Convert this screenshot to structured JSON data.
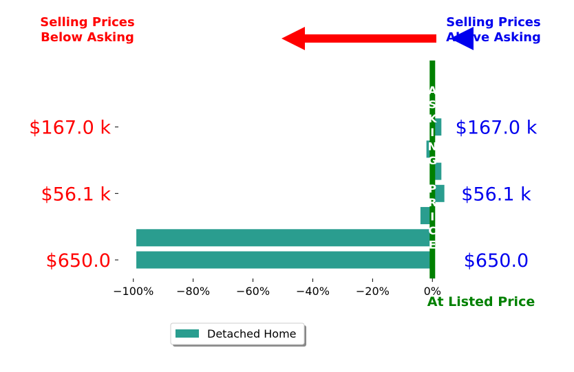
{
  "chart_data": {
    "type": "bar",
    "orientation": "horizontal",
    "series": [
      {
        "name": "Detached Home",
        "color": "#2a9d8f",
        "values": [
          -99,
          -99,
          -4,
          4,
          3,
          -2,
          3
        ]
      }
    ],
    "xlim": [
      -105,
      5
    ],
    "xticks": [
      {
        "value": -100,
        "label": "−100%"
      },
      {
        "value": -80,
        "label": "−80%"
      },
      {
        "value": -60,
        "label": "−60%"
      },
      {
        "value": -40,
        "label": "−40%"
      },
      {
        "value": -20,
        "label": "−20%"
      },
      {
        "value": 0,
        "label": "0%"
      }
    ],
    "left_ticks": [
      {
        "row": 0,
        "label": "$650.0"
      },
      {
        "row": 3,
        "label": "$56.1 k"
      },
      {
        "row": 6,
        "label": "$167.0 k"
      }
    ],
    "right_ticks": [
      {
        "row": 0,
        "label": "$650.0"
      },
      {
        "row": 3,
        "label": "$56.1 k"
      },
      {
        "row": 6,
        "label": "$167.0 k"
      }
    ],
    "annotations": {
      "below_asking": [
        "Selling Prices",
        "Below Asking"
      ],
      "above_asking": [
        "Selling Prices",
        "Above Asking"
      ],
      "asking_price": [
        "A",
        "S",
        "K",
        "I",
        "N",
        "G",
        "",
        "P",
        "R",
        "I",
        "C",
        "E"
      ],
      "at_listed_price": "At Listed Price"
    },
    "legend": {
      "placement": "bottom-center",
      "entries": [
        "Detached Home"
      ]
    },
    "colors": {
      "below": "#ff0000",
      "above": "#0000ee",
      "asking_line": "#008000",
      "bar": "#2a9d8f"
    }
  }
}
